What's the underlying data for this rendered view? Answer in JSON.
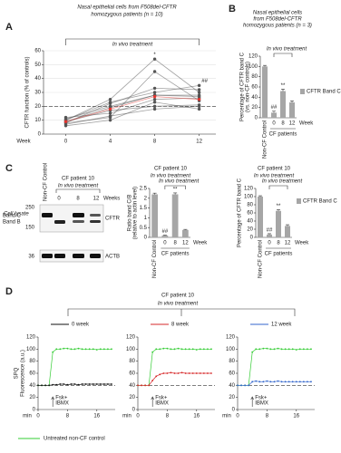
{
  "panel_labels": [
    "A",
    "B",
    "C",
    "D"
  ],
  "chart_data": [
    {
      "type": "line",
      "title": [
        "Nasal epithelial cells from F508del-CFTR",
        "homozygous patients (n = 10)"
      ],
      "bracket_label": "In vivo treatment",
      "x_label": "Week",
      "y_label": "CFTR function (% of controls)",
      "x": [
        0,
        4,
        8,
        12
      ],
      "xlim": [
        -2,
        13.5
      ],
      "xticks": [
        0,
        4,
        8,
        12
      ],
      "ylim": [
        0,
        60
      ],
      "yticks": [
        0,
        10,
        20,
        30,
        40,
        50,
        60
      ],
      "grid": true,
      "reference_line": 20,
      "significance": [
        null,
        null,
        "*",
        "##"
      ],
      "series": [
        {
          "color": "#555555",
          "values": [
            8,
            22,
            33,
            32
          ]
        },
        {
          "color": "#555555",
          "values": [
            10,
            23,
            30,
            35
          ]
        },
        {
          "color": "#555555",
          "values": [
            12,
            15,
            25,
            26
          ]
        },
        {
          "color": "#555555",
          "values": [
            9,
            17,
            20,
            21
          ]
        },
        {
          "color": "#555555",
          "values": [
            7,
            13,
            18,
            20
          ]
        },
        {
          "color": "#555555",
          "values": [
            11,
            20,
            28,
            28
          ]
        },
        {
          "color": "#555555",
          "values": [
            6,
            10,
            23,
            18
          ]
        },
        {
          "color": "#555555",
          "values": [
            10,
            25,
            54,
            30
          ]
        },
        {
          "color": "#555555",
          "values": [
            8,
            12,
            45,
            24
          ]
        },
        {
          "color": "#555555",
          "values": [
            9,
            19,
            28,
            27
          ]
        },
        {
          "color": "#e3342f",
          "values": [
            9,
            18,
            27,
            25
          ]
        }
      ]
    },
    {
      "type": "bar",
      "title": [
        "Nasal epithelial cells",
        "from F508del-CFTR",
        "homozygous patients (n = 3)"
      ],
      "bracket_label": "In vivo treatment",
      "x_label": "Week",
      "group_label": "CF patients",
      "y_label": [
        "Percentage of CFTR band C",
        "(vs. non-CF controls)"
      ],
      "categories": [
        "Non-CF Control",
        "0",
        "8",
        "12"
      ],
      "ylim": [
        0,
        120
      ],
      "yticks": [
        0,
        20,
        40,
        60,
        80,
        100,
        120
      ],
      "significance": [
        null,
        "##",
        "**",
        null
      ],
      "series": [
        {
          "name": "CFTR Band C",
          "color": "#a6a6a6",
          "values": [
            100,
            10,
            52,
            30
          ],
          "errors": [
            2,
            3,
            4,
            3
          ]
        }
      ]
    },
    {
      "type": "bar",
      "title": [
        "CF patient 10"
      ],
      "bracket_label": "In vivo treatment",
      "x_label": "Week",
      "group_label": "CF patients",
      "y_label": [
        "Ratio band C/B",
        "(relative to actin level)"
      ],
      "categories": [
        "Non-CF Control",
        "0",
        "8",
        "12"
      ],
      "ylim": [
        0,
        2.5
      ],
      "yticks": [
        0,
        0.5,
        1,
        1.5,
        2,
        2.5
      ],
      "significance": [
        null,
        "##",
        "**",
        null
      ],
      "series": [
        {
          "color": "#a6a6a6",
          "values": [
            2.2,
            0.1,
            2.2,
            0.38
          ],
          "errors": [
            0.06,
            0.02,
            0.07,
            0.03
          ]
        }
      ]
    },
    {
      "type": "bar",
      "title": [
        "CF patient 10"
      ],
      "bracket_label": "In vivo treatment",
      "x_label": "Week",
      "group_label": "CF patients",
      "y_label": [
        "Percentage of CFTR band C"
      ],
      "categories": [
        "Non-CF Control",
        "0",
        "8",
        "12"
      ],
      "ylim": [
        0,
        120
      ],
      "yticks": [
        0,
        20,
        40,
        60,
        80,
        100,
        120
      ],
      "significance": [
        null,
        "##",
        "**",
        null
      ],
      "series": [
        {
          "name": "CFTR Band C",
          "color": "#a6a6a6",
          "values": [
            100,
            7,
            65,
            28
          ],
          "errors": [
            2,
            2,
            3,
            3
          ]
        }
      ]
    },
    {
      "type": "timecourse",
      "title": "CF patient 10",
      "bracket_label": "In vivo treatment",
      "y_label": [
        "SPQ",
        "Fluorescence (a.u.)"
      ],
      "x_label": "min",
      "annotation": [
        "Fsk+",
        "IBMX"
      ],
      "stimulus_time": 4,
      "x": [
        0,
        1,
        2,
        3,
        4,
        5,
        6,
        7,
        8,
        9,
        10,
        11,
        12,
        13,
        14,
        15,
        16,
        17,
        18,
        19,
        20
      ],
      "xlim": [
        0,
        21
      ],
      "xticks": [
        0,
        8,
        16
      ],
      "ylim": [
        0,
        120
      ],
      "yticks": [
        0,
        20,
        40,
        60,
        80,
        100,
        120
      ],
      "reference_line": 40,
      "control": {
        "name": "Untreated non-CF control",
        "color": "#33cc33",
        "values": [
          40,
          40,
          40,
          40,
          95,
          100,
          100,
          101,
          101,
          100,
          100,
          101,
          100,
          100,
          100,
          100,
          99,
          100,
          100,
          100,
          100
        ]
      },
      "series": [
        {
          "name": "0 week",
          "color": "#111111",
          "values": [
            40,
            40,
            40,
            40,
            41,
            41,
            42,
            42,
            41,
            42,
            42,
            41,
            42,
            42,
            42,
            42,
            42,
            42,
            42,
            42,
            42
          ]
        },
        {
          "name": "8 week",
          "color": "#d62728",
          "values": [
            40,
            40,
            40,
            40,
            48,
            55,
            58,
            60,
            60,
            61,
            60,
            60,
            61,
            60,
            60,
            60,
            60,
            60,
            60,
            60,
            60
          ]
        },
        {
          "name": "12 week",
          "color": "#3366cc",
          "values": [
            40,
            40,
            40,
            40,
            46,
            47,
            46,
            46,
            47,
            46,
            46,
            47,
            46,
            46,
            46,
            46,
            46,
            46,
            46,
            46,
            46
          ]
        }
      ]
    }
  ],
  "blot": {
    "sample": "Cell lysate",
    "patient": "CF patient 10",
    "treatment": "In vivo treatment",
    "control_lane": "Non-CF Control",
    "lanes": [
      "0",
      "8",
      "12"
    ],
    "lanes_label": "Weeks",
    "markers": [
      "250",
      "150",
      "36"
    ],
    "bands": [
      "Band C",
      "Band B"
    ],
    "proteins": [
      "CFTR",
      "ACTB"
    ]
  }
}
